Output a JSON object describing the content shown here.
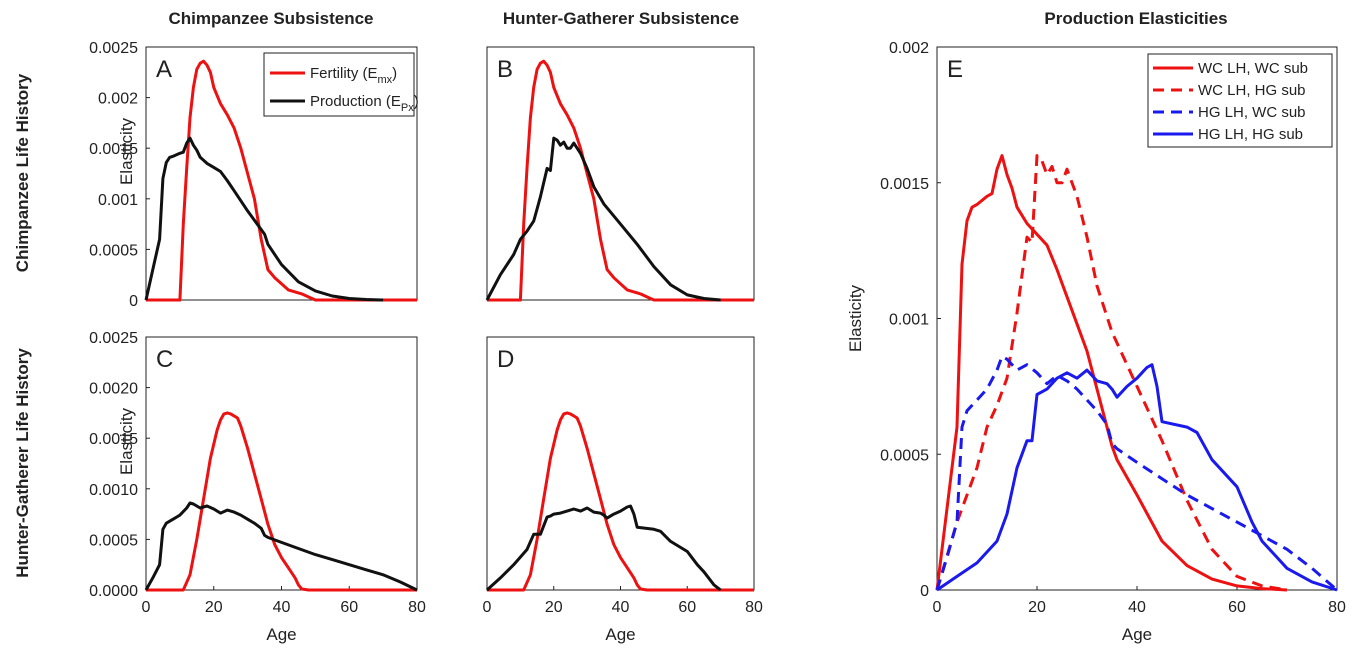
{
  "column_titles": [
    "Chimpanzee Subsistence",
    "Hunter-Gatherer Subsistence",
    "Production Elasticities"
  ],
  "row_titles": [
    "Chimpanzee Life History",
    "Hunter-Gatherer Life History"
  ],
  "colors": {
    "red": "#ee1111",
    "black": "#111111",
    "blue": "#1a1aee"
  },
  "chart_data": [
    {
      "panel": "A",
      "type": "line",
      "xlabel": "",
      "ylabel": "Elasticity",
      "xlim": [
        0,
        80
      ],
      "ylim": [
        0,
        0.0025
      ],
      "grid": false,
      "yticks": [
        "0",
        "0.0005",
        "0.001",
        "0.0015",
        "0.002",
        "0.0025"
      ],
      "xticks": [],
      "legend_position": "top-right",
      "series": [
        {
          "name": "Fertility (E",
          "subscript": "mx",
          "suffix": ")",
          "color": "#ee1111",
          "dash": false,
          "x": [
            0,
            10,
            11,
            12,
            13,
            14,
            15,
            16,
            17,
            18,
            19,
            20,
            22,
            24,
            26,
            28,
            30,
            32,
            34,
            36,
            38,
            40,
            42,
            44,
            46,
            48,
            50,
            80
          ],
          "y": [
            0,
            0,
            0.00075,
            0.0013,
            0.0018,
            0.0021,
            0.00228,
            0.00234,
            0.00236,
            0.00232,
            0.00225,
            0.0021,
            0.00194,
            0.00183,
            0.0017,
            0.0015,
            0.00125,
            0.001,
            0.0006,
            0.0003,
            0.00022,
            0.00016,
            0.0001,
            8e-05,
            6e-05,
            3e-05,
            0,
            0
          ]
        },
        {
          "name": "Production (E",
          "subscript": "Px",
          "suffix": ")",
          "color": "#111111",
          "dash": false,
          "x": [
            0,
            2,
            4,
            5,
            6,
            7,
            8,
            10,
            11,
            12,
            13,
            14,
            15,
            16,
            18,
            20,
            22,
            24,
            26,
            30,
            35,
            36,
            40,
            45,
            50,
            55,
            60,
            65,
            70
          ],
          "y": [
            0,
            0.0003,
            0.0006,
            0.0012,
            0.00136,
            0.00141,
            0.00142,
            0.00145,
            0.00146,
            0.00155,
            0.0016,
            0.00153,
            0.00148,
            0.00141,
            0.00135,
            0.00131,
            0.00127,
            0.00118,
            0.00108,
            0.00088,
            0.00065,
            0.00055,
            0.00035,
            0.00018,
            9e-05,
            4e-05,
            1.5e-05,
            5e-06,
            0
          ]
        }
      ]
    },
    {
      "panel": "B",
      "type": "line",
      "xlabel": "",
      "ylabel": "",
      "xlim": [
        0,
        80
      ],
      "ylim": [
        0,
        0.0025
      ],
      "grid": false,
      "yticks": [],
      "xticks": [],
      "series": [
        {
          "name": "",
          "color": "#ee1111",
          "dash": false,
          "x": [
            0,
            10,
            11,
            12,
            13,
            14,
            15,
            16,
            17,
            18,
            19,
            20,
            22,
            24,
            26,
            28,
            30,
            32,
            34,
            36,
            38,
            40,
            42,
            44,
            46,
            48,
            50,
            80
          ],
          "y": [
            0,
            0,
            0.00075,
            0.0013,
            0.0018,
            0.0021,
            0.00228,
            0.00234,
            0.00236,
            0.00232,
            0.00225,
            0.0021,
            0.00194,
            0.00183,
            0.0017,
            0.0015,
            0.00125,
            0.001,
            0.0006,
            0.0003,
            0.00022,
            0.00016,
            0.0001,
            8e-05,
            6e-05,
            3e-05,
            0,
            0
          ]
        },
        {
          "name": "",
          "color": "#111111",
          "dash": false,
          "x": [
            0,
            4,
            8,
            10,
            12,
            14,
            15,
            16,
            18,
            19,
            20,
            21,
            22,
            23,
            24,
            25,
            26,
            28,
            30,
            32,
            35,
            40,
            45,
            50,
            55,
            60,
            65,
            70
          ],
          "y": [
            0,
            0.00025,
            0.00045,
            0.0006,
            0.00068,
            0.00078,
            0.0009,
            0.00102,
            0.0013,
            0.00128,
            0.0016,
            0.00158,
            0.00153,
            0.00156,
            0.0015,
            0.0015,
            0.00155,
            0.00145,
            0.0013,
            0.00112,
            0.00095,
            0.00075,
            0.00055,
            0.00033,
            0.00015,
            5e-05,
            1.5e-05,
            0
          ]
        }
      ]
    },
    {
      "panel": "C",
      "type": "line",
      "xlabel": "Age",
      "ylabel": "Elasticity",
      "xlim": [
        0,
        80
      ],
      "ylim": [
        0,
        0.0025
      ],
      "grid": false,
      "yticks": [
        "0.0000",
        "0.0005",
        "0.0010",
        "0.0015",
        "0.0020",
        "0.0025"
      ],
      "xticks": [
        "0",
        "20",
        "40",
        "60",
        "80"
      ],
      "series": [
        {
          "name": "",
          "color": "#ee1111",
          "dash": false,
          "x": [
            0,
            11,
            13,
            15,
            17,
            19,
            21,
            22,
            23,
            24,
            25,
            26,
            27,
            28,
            30,
            32,
            34,
            36,
            38,
            40,
            42,
            44,
            45,
            46,
            48,
            50,
            80
          ],
          "y": [
            0,
            0,
            0.00015,
            0.0005,
            0.0009,
            0.0013,
            0.00158,
            0.00168,
            0.00174,
            0.00175,
            0.00174,
            0.00172,
            0.0017,
            0.00162,
            0.0014,
            0.00115,
            0.0009,
            0.00065,
            0.00045,
            0.00032,
            0.00022,
            0.00012,
            5e-05,
            1e-05,
            0,
            0,
            0
          ]
        },
        {
          "name": "",
          "color": "#111111",
          "dash": false,
          "x": [
            0,
            2,
            4,
            5,
            6,
            8,
            10,
            12,
            13,
            14,
            16,
            18,
            20,
            22,
            24,
            26,
            28,
            30,
            32,
            34,
            35,
            36,
            40,
            45,
            50,
            55,
            60,
            65,
            70,
            75,
            80
          ],
          "y": [
            0,
            0.00012,
            0.00025,
            0.0006,
            0.00066,
            0.0007,
            0.00074,
            0.00081,
            0.00086,
            0.00085,
            0.00081,
            0.00083,
            0.0008,
            0.00076,
            0.00079,
            0.00077,
            0.00074,
            0.0007,
            0.00066,
            0.00061,
            0.00054,
            0.00052,
            0.00047,
            0.00041,
            0.00035,
            0.0003,
            0.00025,
            0.0002,
            0.00015,
            8e-05,
            0
          ]
        }
      ]
    },
    {
      "panel": "D",
      "type": "line",
      "xlabel": "Age",
      "ylabel": "",
      "xlim": [
        0,
        80
      ],
      "ylim": [
        0,
        0.0025
      ],
      "grid": false,
      "yticks": [],
      "xticks": [
        "0",
        "20",
        "40",
        "60",
        "80"
      ],
      "series": [
        {
          "name": "",
          "color": "#ee1111",
          "dash": false,
          "x": [
            0,
            11,
            13,
            15,
            17,
            19,
            21,
            22,
            23,
            24,
            25,
            26,
            27,
            28,
            30,
            32,
            34,
            36,
            38,
            40,
            42,
            44,
            45,
            46,
            48,
            50,
            80
          ],
          "y": [
            0,
            0,
            0.00015,
            0.0005,
            0.0009,
            0.0013,
            0.00158,
            0.00168,
            0.00174,
            0.00175,
            0.00174,
            0.00172,
            0.0017,
            0.00162,
            0.0014,
            0.00115,
            0.0009,
            0.00065,
            0.00045,
            0.00032,
            0.00022,
            0.00012,
            5e-05,
            1e-05,
            0,
            0,
            0
          ]
        },
        {
          "name": "",
          "color": "#111111",
          "dash": false,
          "x": [
            0,
            4,
            8,
            12,
            14,
            16,
            18,
            19,
            20,
            22,
            24,
            26,
            28,
            30,
            32,
            34,
            35,
            36,
            38,
            40,
            42,
            43,
            44,
            45,
            50,
            52,
            55,
            60,
            63,
            65,
            68,
            70
          ],
          "y": [
            0,
            0.00012,
            0.00025,
            0.0004,
            0.00055,
            0.00055,
            0.00072,
            0.00073,
            0.00075,
            0.00076,
            0.00078,
            0.0008,
            0.00078,
            0.00081,
            0.00077,
            0.00076,
            0.00074,
            0.00071,
            0.00075,
            0.00078,
            0.00082,
            0.00083,
            0.00075,
            0.00062,
            0.0006,
            0.00058,
            0.00048,
            0.00038,
            0.00025,
            0.00018,
            5e-05,
            0
          ]
        }
      ]
    },
    {
      "panel": "E",
      "type": "line",
      "xlabel": "Age",
      "ylabel": "Elasticity",
      "xlim": [
        0,
        80
      ],
      "ylim": [
        0,
        0.002
      ],
      "grid": false,
      "yticks": [
        "0",
        "0.0005",
        "0.001",
        "0.0015",
        "0.002"
      ],
      "xticks": [
        "0",
        "20",
        "40",
        "60",
        "80"
      ],
      "legend_position": "top-right",
      "series": [
        {
          "name": "WC LH, WC sub",
          "color": "#ee1111",
          "dash": false,
          "x": [
            0,
            2,
            4,
            5,
            6,
            7,
            8,
            10,
            11,
            12,
            13,
            14,
            15,
            16,
            18,
            20,
            22,
            24,
            26,
            30,
            35,
            36,
            40,
            45,
            50,
            55,
            60,
            65,
            70
          ],
          "y": [
            0,
            0.0003,
            0.0006,
            0.0012,
            0.00136,
            0.00141,
            0.00142,
            0.00145,
            0.00146,
            0.00155,
            0.0016,
            0.00153,
            0.00148,
            0.00141,
            0.00135,
            0.00131,
            0.00127,
            0.00118,
            0.00108,
            0.00088,
            0.00053,
            0.00048,
            0.00035,
            0.00018,
            9e-05,
            4e-05,
            1.5e-05,
            5e-06,
            0
          ]
        },
        {
          "name": "WC LH, HG sub",
          "color": "#ee1111",
          "dash": true,
          "x": [
            0,
            4,
            8,
            10,
            12,
            14,
            15,
            16,
            18,
            19,
            20,
            21,
            22,
            23,
            24,
            25,
            26,
            28,
            30,
            32,
            35,
            40,
            45,
            50,
            55,
            60,
            65,
            70
          ],
          "y": [
            0,
            0.00025,
            0.00045,
            0.0006,
            0.00068,
            0.00078,
            0.0009,
            0.00102,
            0.0013,
            0.00128,
            0.0016,
            0.00158,
            0.00153,
            0.00156,
            0.0015,
            0.0015,
            0.00155,
            0.00145,
            0.0013,
            0.00112,
            0.00095,
            0.00075,
            0.00055,
            0.00033,
            0.00015,
            5e-05,
            1.5e-05,
            0
          ]
        },
        {
          "name": "HG LH, WC sub",
          "color": "#1a1aee",
          "dash": true,
          "x": [
            0,
            2,
            4,
            5,
            6,
            8,
            10,
            12,
            13,
            14,
            16,
            18,
            20,
            22,
            24,
            26,
            28,
            30,
            32,
            34,
            35,
            36,
            40,
            45,
            50,
            55,
            60,
            65,
            70,
            75,
            80
          ],
          "y": [
            0,
            0.00012,
            0.00025,
            0.0006,
            0.00066,
            0.0007,
            0.00074,
            0.00081,
            0.00086,
            0.00085,
            0.00081,
            0.00083,
            0.0008,
            0.00076,
            0.00079,
            0.00077,
            0.00074,
            0.0007,
            0.00066,
            0.00061,
            0.00054,
            0.00052,
            0.00047,
            0.00041,
            0.00035,
            0.0003,
            0.00025,
            0.0002,
            0.00015,
            8e-05,
            0
          ]
        },
        {
          "name": "HG LH, HG sub",
          "color": "#1a1aee",
          "dash": false,
          "x": [
            0,
            4,
            8,
            12,
            14,
            16,
            18,
            19,
            20,
            22,
            24,
            26,
            28,
            30,
            32,
            34,
            35,
            36,
            38,
            40,
            42,
            43,
            44,
            45,
            50,
            52,
            55,
            60,
            63,
            65,
            68,
            70,
            75,
            80
          ],
          "y": [
            0,
            5e-05,
            0.0001,
            0.00018,
            0.00028,
            0.00045,
            0.00055,
            0.00055,
            0.00072,
            0.00074,
            0.00078,
            0.0008,
            0.00078,
            0.00081,
            0.00077,
            0.00076,
            0.00074,
            0.00071,
            0.00075,
            0.00078,
            0.00082,
            0.00083,
            0.00075,
            0.00062,
            0.0006,
            0.00058,
            0.00048,
            0.00038,
            0.00025,
            0.00018,
            0.00012,
            8e-05,
            3e-05,
            0
          ]
        }
      ]
    }
  ]
}
